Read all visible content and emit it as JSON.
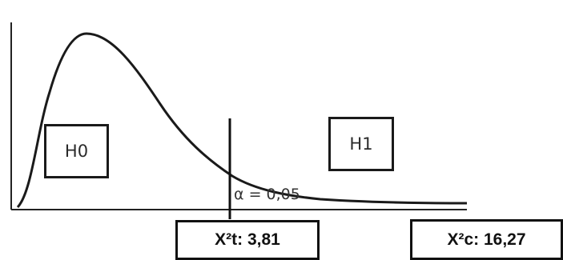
{
  "hypotheses": {
    "null_label": "H0",
    "alternative_label": "H1"
  },
  "significance": {
    "label": "α = 0,05"
  },
  "statistics": {
    "critical_label": "X²t: 3,81",
    "calculated_label": "X²c: 16,27"
  },
  "colors": {
    "line": "#1a1a1a",
    "background": "#ffffff"
  }
}
